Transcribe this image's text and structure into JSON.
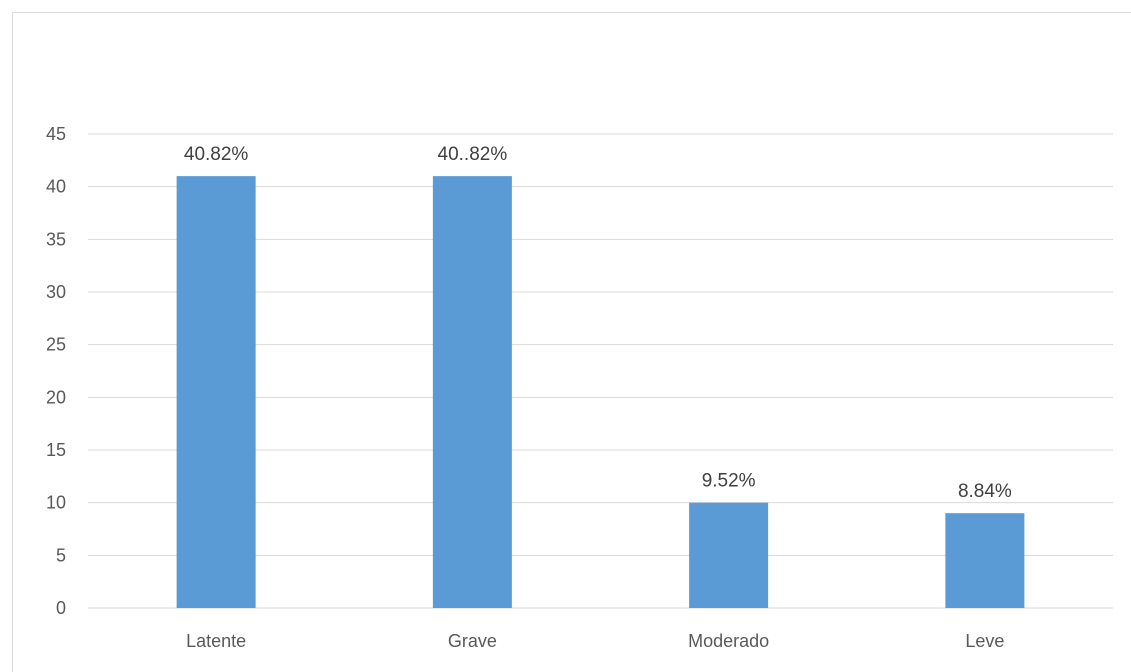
{
  "chart_data": {
    "type": "bar",
    "title": "",
    "xlabel": "",
    "ylabel": "",
    "categories": [
      "Latente",
      "Grave",
      "Moderado",
      "Leve"
    ],
    "values": [
      41,
      41,
      10,
      9
    ],
    "data_labels": [
      "40.82%",
      "40..82%",
      "9.52%",
      "8.84%"
    ],
    "ylim": [
      0,
      45
    ],
    "yticks": [
      0,
      5,
      10,
      15,
      20,
      25,
      30,
      35,
      40,
      45
    ],
    "grid": true,
    "legend": "none",
    "bar_color": "#5B9BD5",
    "grid_color": "#d9d9d9"
  }
}
